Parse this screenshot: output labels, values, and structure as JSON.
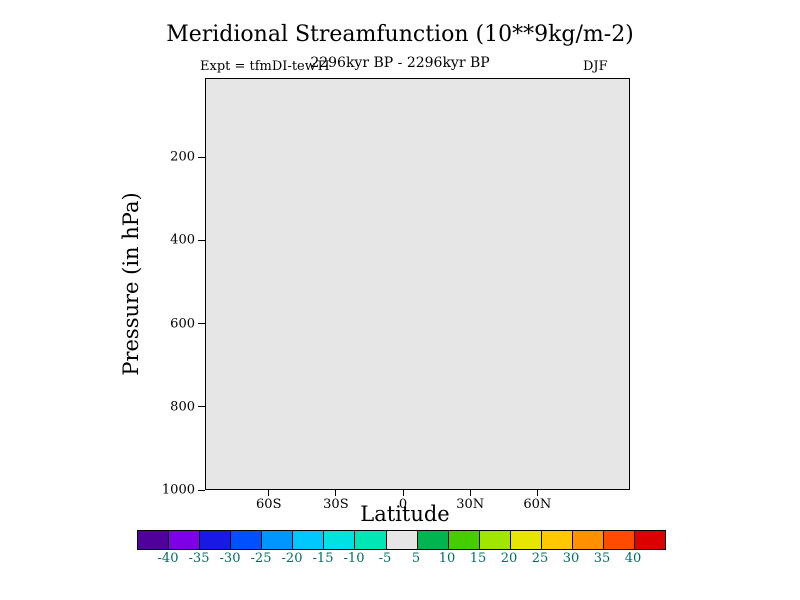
{
  "header": {
    "title": "Meridional Streamfunction (10**9kg/m-2)",
    "experiment": "Expt = tfmDI-tewTI",
    "period": "2296kyr BP - 2296kyr BP",
    "season": "DJF"
  },
  "axes": {
    "x_title": "Latitude",
    "y_title": "Pressure (in hPa)",
    "x_ticks": [
      {
        "label": "60S",
        "value": -60
      },
      {
        "label": "30S",
        "value": -30
      },
      {
        "label": "0",
        "value": 0
      },
      {
        "label": "30N",
        "value": 30
      },
      {
        "label": "60N",
        "value": 60
      }
    ],
    "y_ticks": [
      {
        "label": "200",
        "value": 200
      },
      {
        "label": "400",
        "value": 400
      },
      {
        "label": "600",
        "value": 600
      },
      {
        "label": "800",
        "value": 800
      },
      {
        "label": "1000",
        "value": 1000
      }
    ],
    "y_top_value": 10,
    "y_bottom_value": 1000
  },
  "colors": {
    "plot_bg": "#e6e6e6",
    "colorbar_label_color": "#006e64"
  },
  "colorbar": {
    "boundary_labels": [
      "-40",
      "-35",
      "-30",
      "-25",
      "-20",
      "-15",
      "-10",
      "-5",
      "5",
      "10",
      "15",
      "20",
      "25",
      "30",
      "35",
      "40"
    ],
    "segment_colors": [
      "#50009b",
      "#7d00e6",
      "#1919e6",
      "#0050ff",
      "#0096ff",
      "#00c8ff",
      "#00e1e1",
      "#00e6b4",
      "#e6e6e6",
      "#00b450",
      "#46cd00",
      "#a0e600",
      "#e6e600",
      "#ffc800",
      "#ff9100",
      "#ff4b00",
      "#dc0000"
    ]
  },
  "chart_data": {
    "type": "heatmap",
    "title": "Meridional Streamfunction (10**9kg/m-2)",
    "experiment": "Expt = tfmDI-tewTI",
    "subtitle": "2296kyr BP - 2296kyr BP",
    "season": "DJF",
    "xlabel": "Latitude",
    "ylabel": "Pressure (in hPa)",
    "x_tick_labels": [
      "60S",
      "30S",
      "0",
      "30N",
      "60N"
    ],
    "y_tick_labels": [
      "200",
      "400",
      "600",
      "800",
      "1000"
    ],
    "y_axis_range": [
      10,
      1000
    ],
    "y_axis_inverted": true,
    "contour_levels": [
      -40,
      -35,
      -30,
      -25,
      -20,
      -15,
      -10,
      -5,
      5,
      10,
      15,
      20,
      25,
      30,
      35,
      40
    ],
    "field": "uniform near-zero field (difference of identical periods 2296kyr BP - 2296kyr BP); entire plot area falls in the -5 to 5 band and is rendered as flat light gray",
    "field_value_range": [
      -5,
      5
    ],
    "legend_position": "bottom",
    "grid": false
  }
}
